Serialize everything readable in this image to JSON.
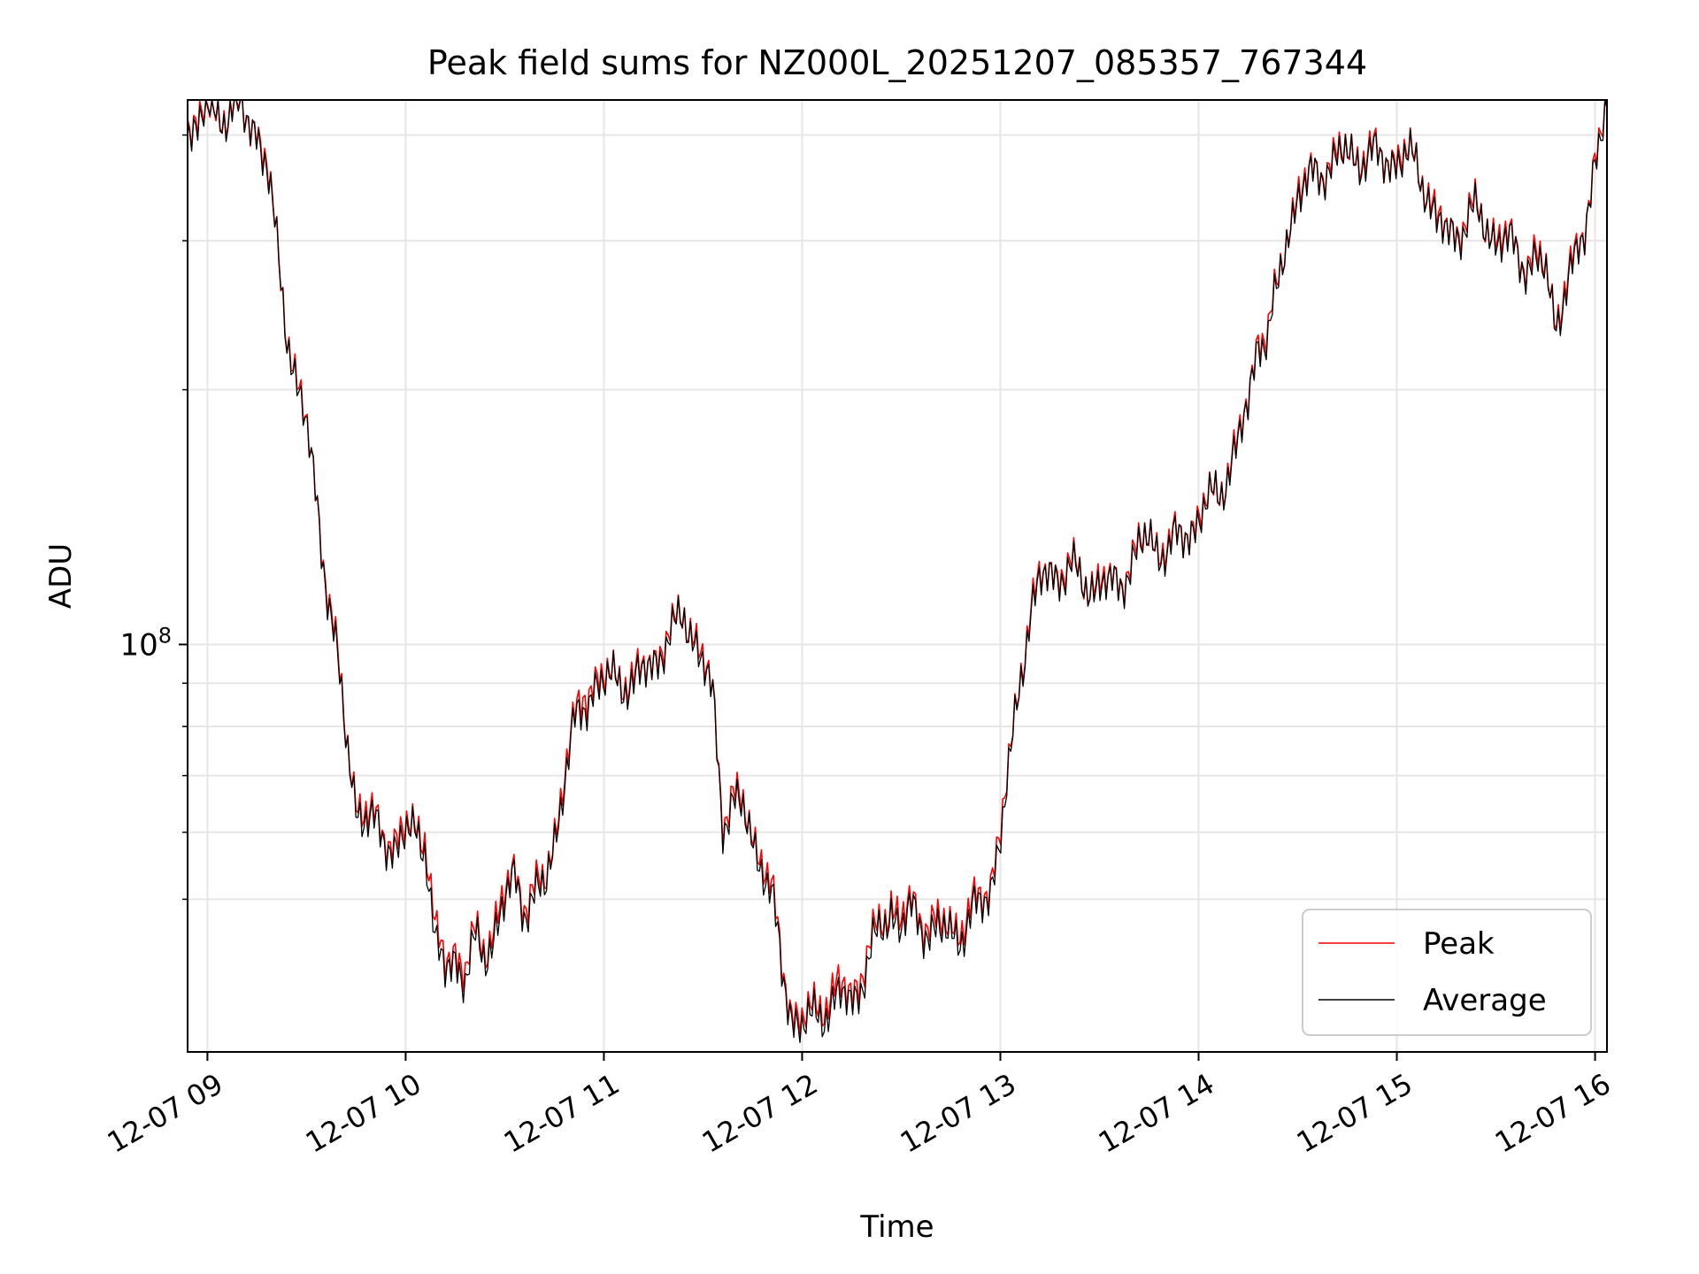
{
  "chart_data": {
    "type": "line",
    "title": "Peak field sums for NZ000L_20251207_085357_767344",
    "xlabel": "Time",
    "ylabel": "ADU",
    "yscale": "log",
    "ylim": [
      33000000,
      440000000
    ],
    "xlim_hours": [
      8.9,
      16.06
    ],
    "x_tick_hours": [
      9,
      10,
      11,
      12,
      13,
      14,
      15,
      16
    ],
    "x_tick_labels": [
      "12-07 09",
      "12-07 10",
      "12-07 11",
      "12-07 12",
      "12-07 13",
      "12-07 14",
      "12-07 15",
      "12-07 16"
    ],
    "y_major_ticks": [
      {
        "value": 100000000,
        "base": "10",
        "exp": "8"
      }
    ],
    "y_minor_ticks": [
      50000000,
      60000000,
      70000000,
      80000000,
      90000000,
      200000000,
      300000000,
      400000000
    ],
    "grid": true,
    "legend_position": "lower-right",
    "series": [
      {
        "name": "Peak",
        "color": "#ff0000",
        "keypoints": [
          [
            8.9,
            418
          ],
          [
            8.95,
            408
          ],
          [
            9.0,
            430
          ],
          [
            9.05,
            425
          ],
          [
            9.1,
            428
          ],
          [
            9.15,
            430
          ],
          [
            9.2,
            418
          ],
          [
            9.25,
            410
          ],
          [
            9.3,
            368
          ],
          [
            9.35,
            295
          ],
          [
            9.4,
            238
          ],
          [
            9.45,
            205
          ],
          [
            9.5,
            180
          ],
          [
            9.55,
            150
          ],
          [
            9.6,
            120
          ],
          [
            9.65,
            98
          ],
          [
            9.7,
            78
          ],
          [
            9.75,
            66
          ],
          [
            9.8,
            63
          ],
          [
            9.85,
            61
          ],
          [
            9.9,
            60
          ],
          [
            9.95,
            58.5
          ],
          [
            10.0,
            60
          ],
          [
            10.05,
            61
          ],
          [
            10.1,
            60
          ],
          [
            10.15,
            45
          ],
          [
            10.2,
            42
          ],
          [
            10.25,
            44
          ],
          [
            10.3,
            41
          ],
          [
            10.35,
            45
          ],
          [
            10.4,
            44
          ],
          [
            10.45,
            47
          ],
          [
            10.5,
            50
          ],
          [
            10.55,
            54
          ],
          [
            10.6,
            50
          ],
          [
            10.65,
            51
          ],
          [
            10.7,
            52
          ],
          [
            10.75,
            60
          ],
          [
            10.8,
            70
          ],
          [
            10.85,
            80
          ],
          [
            10.9,
            88
          ],
          [
            10.95,
            91
          ],
          [
            11.0,
            90
          ],
          [
            11.05,
            92
          ],
          [
            11.1,
            92
          ],
          [
            11.15,
            90
          ],
          [
            11.2,
            93
          ],
          [
            11.25,
            97
          ],
          [
            11.3,
            100
          ],
          [
            11.35,
            103
          ],
          [
            11.4,
            110
          ],
          [
            11.45,
            104
          ],
          [
            11.5,
            95
          ],
          [
            11.55,
            87
          ],
          [
            11.6,
            63
          ],
          [
            11.65,
            66
          ],
          [
            11.7,
            64
          ],
          [
            11.75,
            60
          ],
          [
            11.8,
            56
          ],
          [
            11.85,
            50
          ],
          [
            11.9,
            42
          ],
          [
            11.95,
            37
          ],
          [
            12.0,
            35.5
          ],
          [
            12.05,
            37
          ],
          [
            12.1,
            38
          ],
          [
            12.15,
            38.5
          ],
          [
            12.2,
            39
          ],
          [
            12.25,
            39
          ],
          [
            12.3,
            41
          ],
          [
            12.35,
            44
          ],
          [
            12.4,
            47
          ],
          [
            12.45,
            50
          ],
          [
            12.5,
            47
          ],
          [
            12.55,
            49
          ],
          [
            12.6,
            48
          ],
          [
            12.65,
            47
          ],
          [
            12.7,
            46
          ],
          [
            12.75,
            47
          ],
          [
            12.8,
            46.5
          ],
          [
            12.85,
            48
          ],
          [
            12.9,
            50
          ],
          [
            12.95,
            53
          ],
          [
            13.0,
            60
          ],
          [
            13.05,
            73
          ],
          [
            13.1,
            93
          ],
          [
            13.15,
            110
          ],
          [
            13.2,
            118
          ],
          [
            13.25,
            122
          ],
          [
            13.3,
            123
          ],
          [
            13.35,
            123
          ],
          [
            13.4,
            120
          ],
          [
            13.45,
            118
          ],
          [
            13.5,
            120
          ],
          [
            13.55,
            116
          ],
          [
            13.6,
            120
          ],
          [
            13.65,
            124
          ],
          [
            13.7,
            130
          ],
          [
            13.75,
            134
          ],
          [
            13.8,
            132
          ],
          [
            13.85,
            129
          ],
          [
            13.9,
            134
          ],
          [
            13.95,
            137
          ],
          [
            14.0,
            142
          ],
          [
            14.05,
            147
          ],
          [
            14.1,
            152
          ],
          [
            14.15,
            162
          ],
          [
            14.2,
            173
          ],
          [
            14.25,
            192
          ],
          [
            14.3,
            236
          ],
          [
            14.35,
            232
          ],
          [
            14.4,
            265
          ],
          [
            14.45,
            310
          ],
          [
            14.5,
            345
          ],
          [
            14.55,
            350
          ],
          [
            14.6,
            362
          ],
          [
            14.65,
            372
          ],
          [
            14.7,
            377
          ],
          [
            14.75,
            380
          ],
          [
            14.8,
            381
          ],
          [
            14.85,
            379
          ],
          [
            14.9,
            377
          ],
          [
            14.95,
            375
          ],
          [
            15.0,
            380
          ],
          [
            15.05,
            376
          ],
          [
            15.1,
            370
          ],
          [
            15.15,
            350
          ],
          [
            15.2,
            318
          ],
          [
            15.25,
            306
          ],
          [
            15.3,
            310
          ],
          [
            15.35,
            320
          ],
          [
            15.4,
            325
          ],
          [
            15.45,
            312
          ],
          [
            15.5,
            308
          ],
          [
            15.55,
            300
          ],
          [
            15.6,
            292
          ],
          [
            15.65,
            285
          ],
          [
            15.7,
            288
          ],
          [
            15.75,
            275
          ],
          [
            15.8,
            243
          ],
          [
            15.85,
            268
          ],
          [
            15.9,
            282
          ],
          [
            15.95,
            310
          ],
          [
            16.0,
            385
          ],
          [
            16.06,
            432
          ]
        ]
      },
      {
        "name": "Average",
        "color": "#000000",
        "keypoints": [
          [
            8.9,
            415
          ],
          [
            8.95,
            406
          ],
          [
            9.0,
            428
          ],
          [
            9.05,
            423
          ],
          [
            9.1,
            426
          ],
          [
            9.15,
            428
          ],
          [
            9.2,
            416
          ],
          [
            9.25,
            408
          ],
          [
            9.3,
            366
          ],
          [
            9.35,
            293
          ],
          [
            9.4,
            236
          ],
          [
            9.45,
            204
          ],
          [
            9.5,
            179
          ],
          [
            9.55,
            149
          ],
          [
            9.6,
            119
          ],
          [
            9.65,
            97
          ],
          [
            9.7,
            77
          ],
          [
            9.75,
            65
          ],
          [
            9.8,
            62
          ],
          [
            9.85,
            60
          ],
          [
            9.9,
            59
          ],
          [
            9.95,
            57.5
          ],
          [
            10.0,
            59
          ],
          [
            10.05,
            60
          ],
          [
            10.1,
            58.5
          ],
          [
            10.15,
            43.5
          ],
          [
            10.2,
            41
          ],
          [
            10.25,
            43
          ],
          [
            10.3,
            40
          ],
          [
            10.35,
            44
          ],
          [
            10.4,
            43
          ],
          [
            10.45,
            46
          ],
          [
            10.5,
            49
          ],
          [
            10.55,
            53
          ],
          [
            10.6,
            49
          ],
          [
            10.65,
            50
          ],
          [
            10.7,
            51
          ],
          [
            10.75,
            59
          ],
          [
            10.8,
            69
          ],
          [
            10.85,
            79
          ],
          [
            10.95,
            90
          ],
          [
            11.0,
            89
          ],
          [
            11.05,
            91
          ],
          [
            11.1,
            91
          ],
          [
            11.15,
            89
          ],
          [
            11.2,
            92
          ],
          [
            11.25,
            96
          ],
          [
            11.3,
            99
          ],
          [
            11.35,
            102
          ],
          [
            11.4,
            109
          ],
          [
            11.45,
            103
          ],
          [
            11.5,
            94
          ],
          [
            11.55,
            86
          ],
          [
            11.6,
            62
          ],
          [
            11.65,
            65
          ],
          [
            11.7,
            63
          ],
          [
            11.75,
            59
          ],
          [
            11.8,
            55
          ],
          [
            11.85,
            49
          ],
          [
            11.9,
            41
          ],
          [
            11.95,
            36.5
          ],
          [
            12.0,
            35
          ],
          [
            12.05,
            36
          ],
          [
            12.1,
            37
          ],
          [
            12.15,
            37.5
          ],
          [
            12.2,
            38
          ],
          [
            12.25,
            38
          ],
          [
            12.3,
            40
          ],
          [
            12.35,
            43
          ],
          [
            12.4,
            46
          ],
          [
            12.45,
            49
          ],
          [
            12.5,
            46
          ],
          [
            12.55,
            48
          ],
          [
            12.6,
            47
          ],
          [
            12.65,
            46
          ],
          [
            12.7,
            45
          ],
          [
            12.75,
            46
          ],
          [
            12.8,
            45.5
          ],
          [
            12.85,
            47
          ],
          [
            12.9,
            49
          ],
          [
            12.95,
            52
          ],
          [
            13.0,
            59
          ],
          [
            13.05,
            72
          ],
          [
            13.1,
            92
          ],
          [
            13.15,
            109
          ],
          [
            13.2,
            117
          ],
          [
            13.25,
            121
          ],
          [
            13.3,
            122
          ],
          [
            13.35,
            122
          ],
          [
            13.4,
            119
          ],
          [
            13.45,
            117
          ],
          [
            13.5,
            119
          ],
          [
            13.55,
            115
          ],
          [
            13.6,
            119
          ],
          [
            13.65,
            123
          ],
          [
            13.7,
            129
          ],
          [
            13.75,
            133
          ],
          [
            13.8,
            131
          ],
          [
            13.85,
            128
          ],
          [
            13.9,
            133
          ],
          [
            13.95,
            136
          ],
          [
            14.0,
            141
          ],
          [
            14.05,
            146
          ],
          [
            14.1,
            151
          ],
          [
            14.15,
            161
          ],
          [
            14.2,
            172
          ],
          [
            14.25,
            190
          ],
          [
            14.3,
            233
          ],
          [
            14.35,
            229
          ],
          [
            14.4,
            262
          ],
          [
            14.45,
            307
          ],
          [
            14.5,
            342
          ],
          [
            14.55,
            347
          ],
          [
            14.6,
            359
          ],
          [
            14.65,
            369
          ],
          [
            14.7,
            374
          ],
          [
            14.75,
            377
          ],
          [
            14.8,
            378
          ],
          [
            14.85,
            376
          ],
          [
            14.9,
            374
          ],
          [
            14.95,
            372
          ],
          [
            15.0,
            377
          ],
          [
            15.05,
            373
          ],
          [
            15.1,
            367
          ],
          [
            15.15,
            347
          ],
          [
            15.2,
            315
          ],
          [
            15.25,
            303
          ],
          [
            15.3,
            307
          ],
          [
            15.35,
            317
          ],
          [
            15.4,
            322
          ],
          [
            15.45,
            309
          ],
          [
            15.5,
            305
          ],
          [
            15.55,
            297
          ],
          [
            15.6,
            289
          ],
          [
            15.65,
            282
          ],
          [
            15.7,
            285
          ],
          [
            15.75,
            272
          ],
          [
            15.8,
            240
          ],
          [
            15.85,
            265
          ],
          [
            15.9,
            279
          ],
          [
            15.95,
            307
          ],
          [
            16.0,
            382
          ],
          [
            16.06,
            430
          ]
        ]
      }
    ],
    "units_note": "keypoint y values are in millions of ADU"
  }
}
